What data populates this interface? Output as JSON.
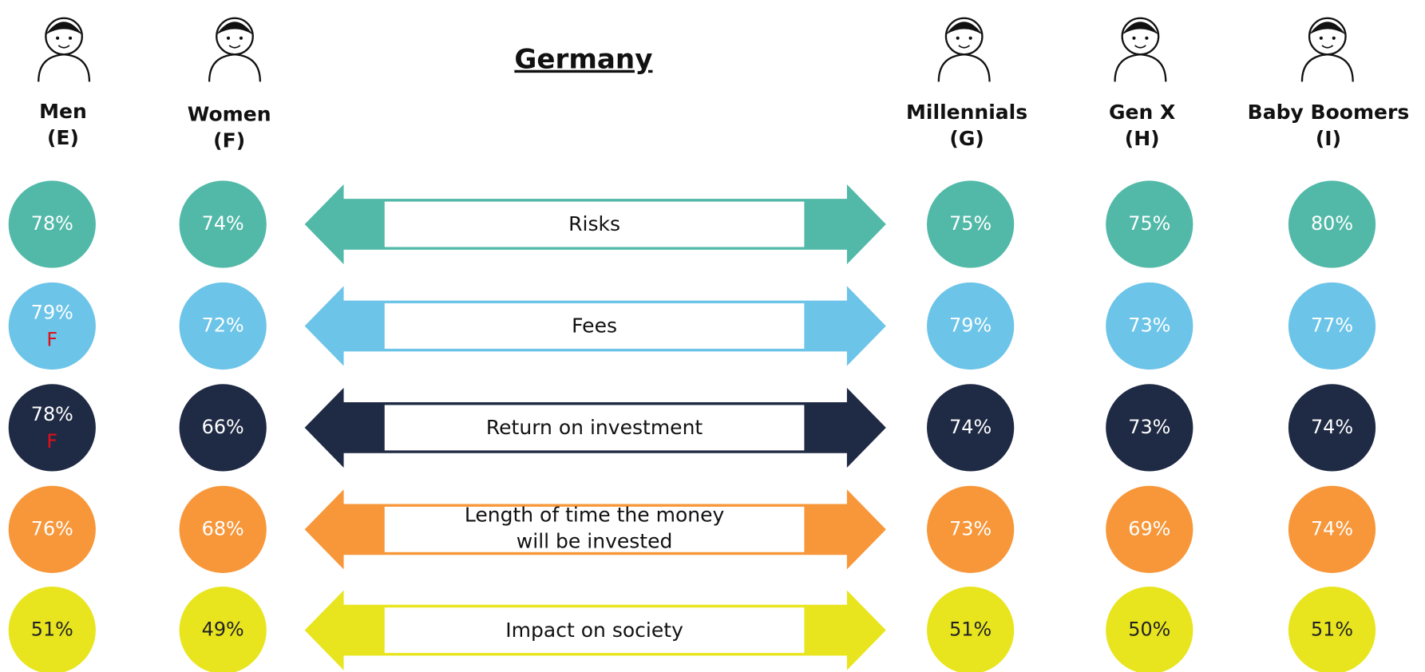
{
  "title": "Germany",
  "groups": [
    {
      "label": "Men",
      "code": "(E)"
    },
    {
      "label": "Women",
      "code": "(F)"
    },
    {
      "label": "Millennials",
      "code": "(G)"
    },
    {
      "label": "Gen X",
      "code": "(H)"
    },
    {
      "label": "Baby Boomers",
      "code": "(I)"
    }
  ],
  "rows": [
    {
      "label": "Risks",
      "color": "#52b9a8",
      "text_color": "#ffffff",
      "values": [
        {
          "text": "78%"
        },
        {
          "text": "74%"
        },
        {
          "text": "75%"
        },
        {
          "text": "75%"
        },
        {
          "text": "80%"
        }
      ]
    },
    {
      "label": "Fees",
      "color": "#6cc4e8",
      "text_color": "#ffffff",
      "values": [
        {
          "text": "79%",
          "note": "F"
        },
        {
          "text": "72%"
        },
        {
          "text": "79%"
        },
        {
          "text": "73%"
        },
        {
          "text": "77%"
        }
      ]
    },
    {
      "label": "Return on investment",
      "color": "#1f2a44",
      "text_color": "#ffffff",
      "values": [
        {
          "text": "78%",
          "note": "F"
        },
        {
          "text": "66%"
        },
        {
          "text": "74%"
        },
        {
          "text": "73%"
        },
        {
          "text": "74%"
        }
      ]
    },
    {
      "label": [
        "Length of time the money",
        "will be invested"
      ],
      "color": "#f7973a",
      "text_color": "#ffffff",
      "values": [
        {
          "text": "76%"
        },
        {
          "text": "68%"
        },
        {
          "text": "73%"
        },
        {
          "text": "69%"
        },
        {
          "text": "74%"
        }
      ]
    },
    {
      "label": "Impact on society",
      "color": "#e8e51f",
      "text_color": "#222222",
      "values": [
        {
          "text": "51%"
        },
        {
          "text": "49%"
        },
        {
          "text": "51%"
        },
        {
          "text": "50%"
        },
        {
          "text": "51%"
        }
      ]
    }
  ]
}
